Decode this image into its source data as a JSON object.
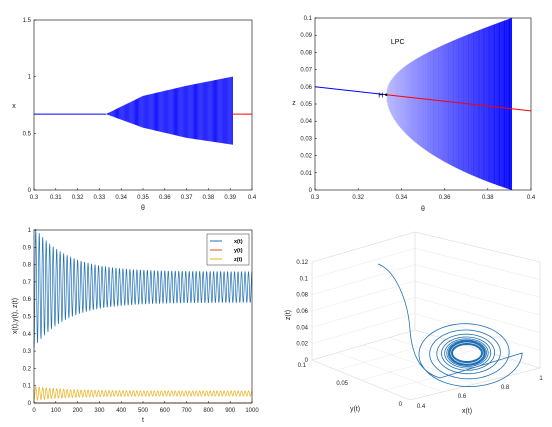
{
  "chart_data": [
    {
      "panel": "top-left",
      "type": "line",
      "xlabel": "θ",
      "ylabel": "x",
      "xlim": [
        0.3,
        0.4
      ],
      "ylim": [
        0,
        1.5
      ],
      "xticks": [
        "0.3",
        "0.31",
        "0.32",
        "0.33",
        "0.34",
        "0.35",
        "0.36",
        "0.37",
        "0.38",
        "0.39",
        "0.4"
      ],
      "yticks": [
        "0",
        "0.5",
        "1",
        "1.5"
      ],
      "equilibrium": {
        "y": 0.67,
        "stable_color": "#0000ff",
        "unstable_color": "#ff0000",
        "switch_theta": 0.333
      },
      "oscillation_envelope": {
        "theta": [
          0.333,
          0.35,
          0.37,
          0.391
        ],
        "max": [
          0.67,
          0.83,
          0.92,
          1.0
        ],
        "min": [
          0.67,
          0.55,
          0.46,
          0.4
        ],
        "color": "#0000ff"
      },
      "grid": false
    },
    {
      "panel": "top-right",
      "type": "line",
      "xlabel": "θ",
      "ylabel": "z",
      "xlim": [
        0.3,
        0.4
      ],
      "ylim": [
        0,
        0.1
      ],
      "xticks": [
        "0.3",
        "0.32",
        "0.34",
        "0.36",
        "0.38",
        "0.4"
      ],
      "yticks": [
        "0",
        "0.01",
        "0.02",
        "0.03",
        "0.04",
        "0.05",
        "0.06",
        "0.07",
        "0.08",
        "0.09",
        "0.1"
      ],
      "equilibrium": {
        "theta": [
          0.3,
          0.4
        ],
        "z": [
          0.06,
          0.046
        ],
        "switch_theta": 0.333,
        "stable_color": "#0000ff",
        "unstable_color": "#ff0000"
      },
      "limit_cycle_family": {
        "theta_start": 0.333,
        "theta_end": 0.391,
        "max_at_end": 0.1,
        "min_at_end": 0.0,
        "color": "#0000ff"
      },
      "annotations": [
        {
          "text": "H",
          "theta": 0.333,
          "z": 0.055
        },
        {
          "text": "LPC",
          "theta": 0.337,
          "z": 0.085
        }
      ],
      "grid": false
    },
    {
      "panel": "bottom-left",
      "type": "line",
      "xlabel": "t",
      "ylabel": "x(t),y(t), z(t)",
      "xlim": [
        0,
        1000
      ],
      "ylim": [
        0,
        1
      ],
      "xticks": [
        "0",
        "100",
        "200",
        "300",
        "400",
        "500",
        "600",
        "700",
        "800",
        "900",
        "1000"
      ],
      "yticks": [
        "0",
        "0.1",
        "0.2",
        "0.3",
        "0.4",
        "0.5",
        "0.6",
        "0.7",
        "0.8",
        "0.9",
        "1"
      ],
      "series": [
        {
          "name": "x(t)",
          "color": "#1f6fb4",
          "mean": 0.67,
          "initial_amplitude": 0.35,
          "final_amplitude": 0.09,
          "period": 16
        },
        {
          "name": "y(t)",
          "color": "#d95319",
          "mean": 0.0,
          "initial_amplitude": 0.0,
          "final_amplitude": 0.0,
          "period": 16
        },
        {
          "name": "z(t)",
          "color": "#edb120",
          "mean": 0.055,
          "initial_amplitude": 0.04,
          "final_amplitude": 0.015,
          "period": 16
        }
      ],
      "legend": "top-right",
      "grid": false
    },
    {
      "panel": "bottom-right",
      "type": "line",
      "xlabel": "x(t)",
      "ylabel": "y(t)",
      "zlabel": "z(t)",
      "xticks": [
        "0.4",
        "0.6",
        "0.8",
        "1"
      ],
      "yticks": [
        "0",
        "0.05",
        "0.1"
      ],
      "zticks": [
        "0",
        "0.02",
        "0.04",
        "0.06",
        "0.08",
        "0.1",
        "0.12"
      ],
      "series_color": "#1f6fb4",
      "initial_point": {
        "x": 0.4,
        "y": 0.1,
        "z": 0.12
      },
      "attractor_center": {
        "x": 0.72,
        "y": 0.03,
        "z": 0.05
      },
      "grid": true
    }
  ]
}
